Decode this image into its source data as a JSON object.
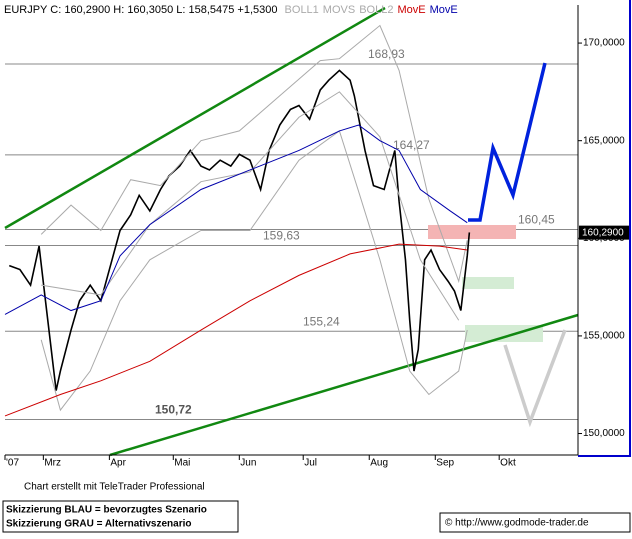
{
  "chart_data": {
    "type": "line",
    "quote": "C: 160,2900 H: 160,3050 L: 158,5475 +1,5300",
    "xlim": [
      41,
      310
    ],
    "ylim": [
      148.9,
      171.95
    ],
    "xticks": [
      {
        "value": 41,
        "label": "'07"
      },
      {
        "value": 59,
        "label": "Mrz"
      },
      {
        "value": 90,
        "label": "Apr"
      },
      {
        "value": 120,
        "label": "Mai"
      },
      {
        "value": 151,
        "label": "Jun"
      },
      {
        "value": 181,
        "label": "Jul"
      },
      {
        "value": 212,
        "label": "Aug"
      },
      {
        "value": 243,
        "label": "Sep"
      },
      {
        "value": 273,
        "label": "Okt"
      }
    ],
    "yticks": [
      {
        "value": 150,
        "label": "150,0000"
      },
      {
        "value": 155,
        "label": "155,0000"
      },
      {
        "value": 160,
        "label": "160,0000"
      },
      {
        "value": 165,
        "label": "165,0000"
      },
      {
        "value": 170,
        "label": "170,0000"
      }
    ],
    "series": [
      {
        "name": "EURJPY",
        "color": "#000000",
        "x": [
          43,
          48,
          53,
          57,
          60,
          65,
          67,
          72,
          76,
          81,
          86,
          90,
          95,
          100,
          104,
          109,
          114,
          118,
          123,
          128,
          133,
          137,
          142,
          147,
          151,
          156,
          161,
          165,
          170,
          175,
          179,
          184,
          189,
          193,
          198,
          203,
          205,
          210,
          214,
          219,
          224,
          226,
          229,
          231,
          233,
          235,
          238,
          241,
          245,
          249,
          252,
          255,
          258,
          259
        ],
        "values": [
          158.6,
          158.4,
          157.6,
          159.6,
          156.8,
          152.2,
          153.2,
          155.3,
          156.8,
          157.6,
          156.8,
          158.4,
          160.4,
          161.2,
          162.2,
          161.4,
          162.5,
          163.2,
          163.7,
          164.5,
          163.7,
          163.5,
          164.0,
          163.7,
          164.3,
          164.0,
          162.5,
          164.5,
          165.8,
          166.6,
          166.8,
          166.1,
          167.6,
          168.1,
          168.6,
          168.1,
          167.3,
          164.5,
          162.7,
          162.5,
          164.5,
          161.9,
          158.9,
          155.8,
          153.2,
          154.3,
          158.9,
          159.4,
          158.4,
          157.8,
          157.3,
          156.3,
          159.1,
          160.3
        ]
      },
      {
        "name": "BOLL1",
        "color": "#aaaaaa",
        "x": [
          58,
          72,
          86,
          100,
          114,
          133,
          151,
          170,
          189,
          198,
          217,
          226,
          240,
          254,
          258
        ],
        "values": [
          160.2,
          161.7,
          160.4,
          163.0,
          162.7,
          165.0,
          165.5,
          167.3,
          169.1,
          169.2,
          170.9,
          168.6,
          162.0,
          157.8,
          159.9
        ]
      },
      {
        "name": "MOVS",
        "color": "#aaaaaa",
        "x": [
          58,
          86,
          109,
          133,
          156,
          179,
          198,
          217,
          236,
          254
        ],
        "values": [
          157.6,
          157.1,
          160.7,
          162.9,
          163.4,
          166.2,
          167.5,
          165.2,
          158.9,
          155.8
        ]
      },
      {
        "name": "BOLL2",
        "color": "#aaaaaa",
        "x": [
          58,
          67,
          81,
          95,
          109,
          133,
          156,
          179,
          198,
          207,
          217,
          231,
          240,
          254,
          258
        ],
        "values": [
          154.8,
          151.2,
          153.2,
          156.8,
          158.9,
          160.4,
          160.4,
          164.0,
          165.5,
          162.4,
          158.9,
          153.2,
          152.0,
          153.2,
          155.3
        ]
      },
      {
        "name": "MovE",
        "color": "#cc0000",
        "x": [
          41,
          67,
          86,
          109,
          133,
          156,
          179,
          203,
          226,
          245,
          258
        ],
        "values": [
          150.9,
          152.0,
          152.7,
          153.7,
          155.3,
          156.8,
          158.1,
          159.2,
          159.7,
          159.6,
          159.4
        ]
      },
      {
        "name": "MovE",
        "color": "#0000aa",
        "x": [
          41,
          58,
          72,
          86,
          95,
          109,
          133,
          156,
          179,
          198,
          207,
          217,
          226,
          236,
          250,
          258
        ],
        "values": [
          156.1,
          157.1,
          156.3,
          156.8,
          159.1,
          160.7,
          162.5,
          163.5,
          164.5,
          165.5,
          165.8,
          165.0,
          164.5,
          162.5,
          161.4,
          160.8
        ]
      }
    ],
    "levels": [
      {
        "value": 168.93,
        "label": "168,93"
      },
      {
        "value": 164.27,
        "label": "164,27"
      },
      {
        "value": 160.45,
        "label": "160,45"
      },
      {
        "value": 159.63,
        "label": "159,63"
      },
      {
        "value": 155.24,
        "label": "155,24"
      },
      {
        "value": 150.72,
        "label": "150,72"
      }
    ],
    "last_price": {
      "value": 160.29,
      "label": "160,2900"
    },
    "credit": "Chart erstellt mit TeleTrader Professional",
    "scenario_notes": [
      "Skizzierung BLAU = bevorzugtes Szenario",
      "Skizzierung GRAU = Alternativszenario"
    ],
    "source": "© http://www.godmode-trader.de"
  }
}
